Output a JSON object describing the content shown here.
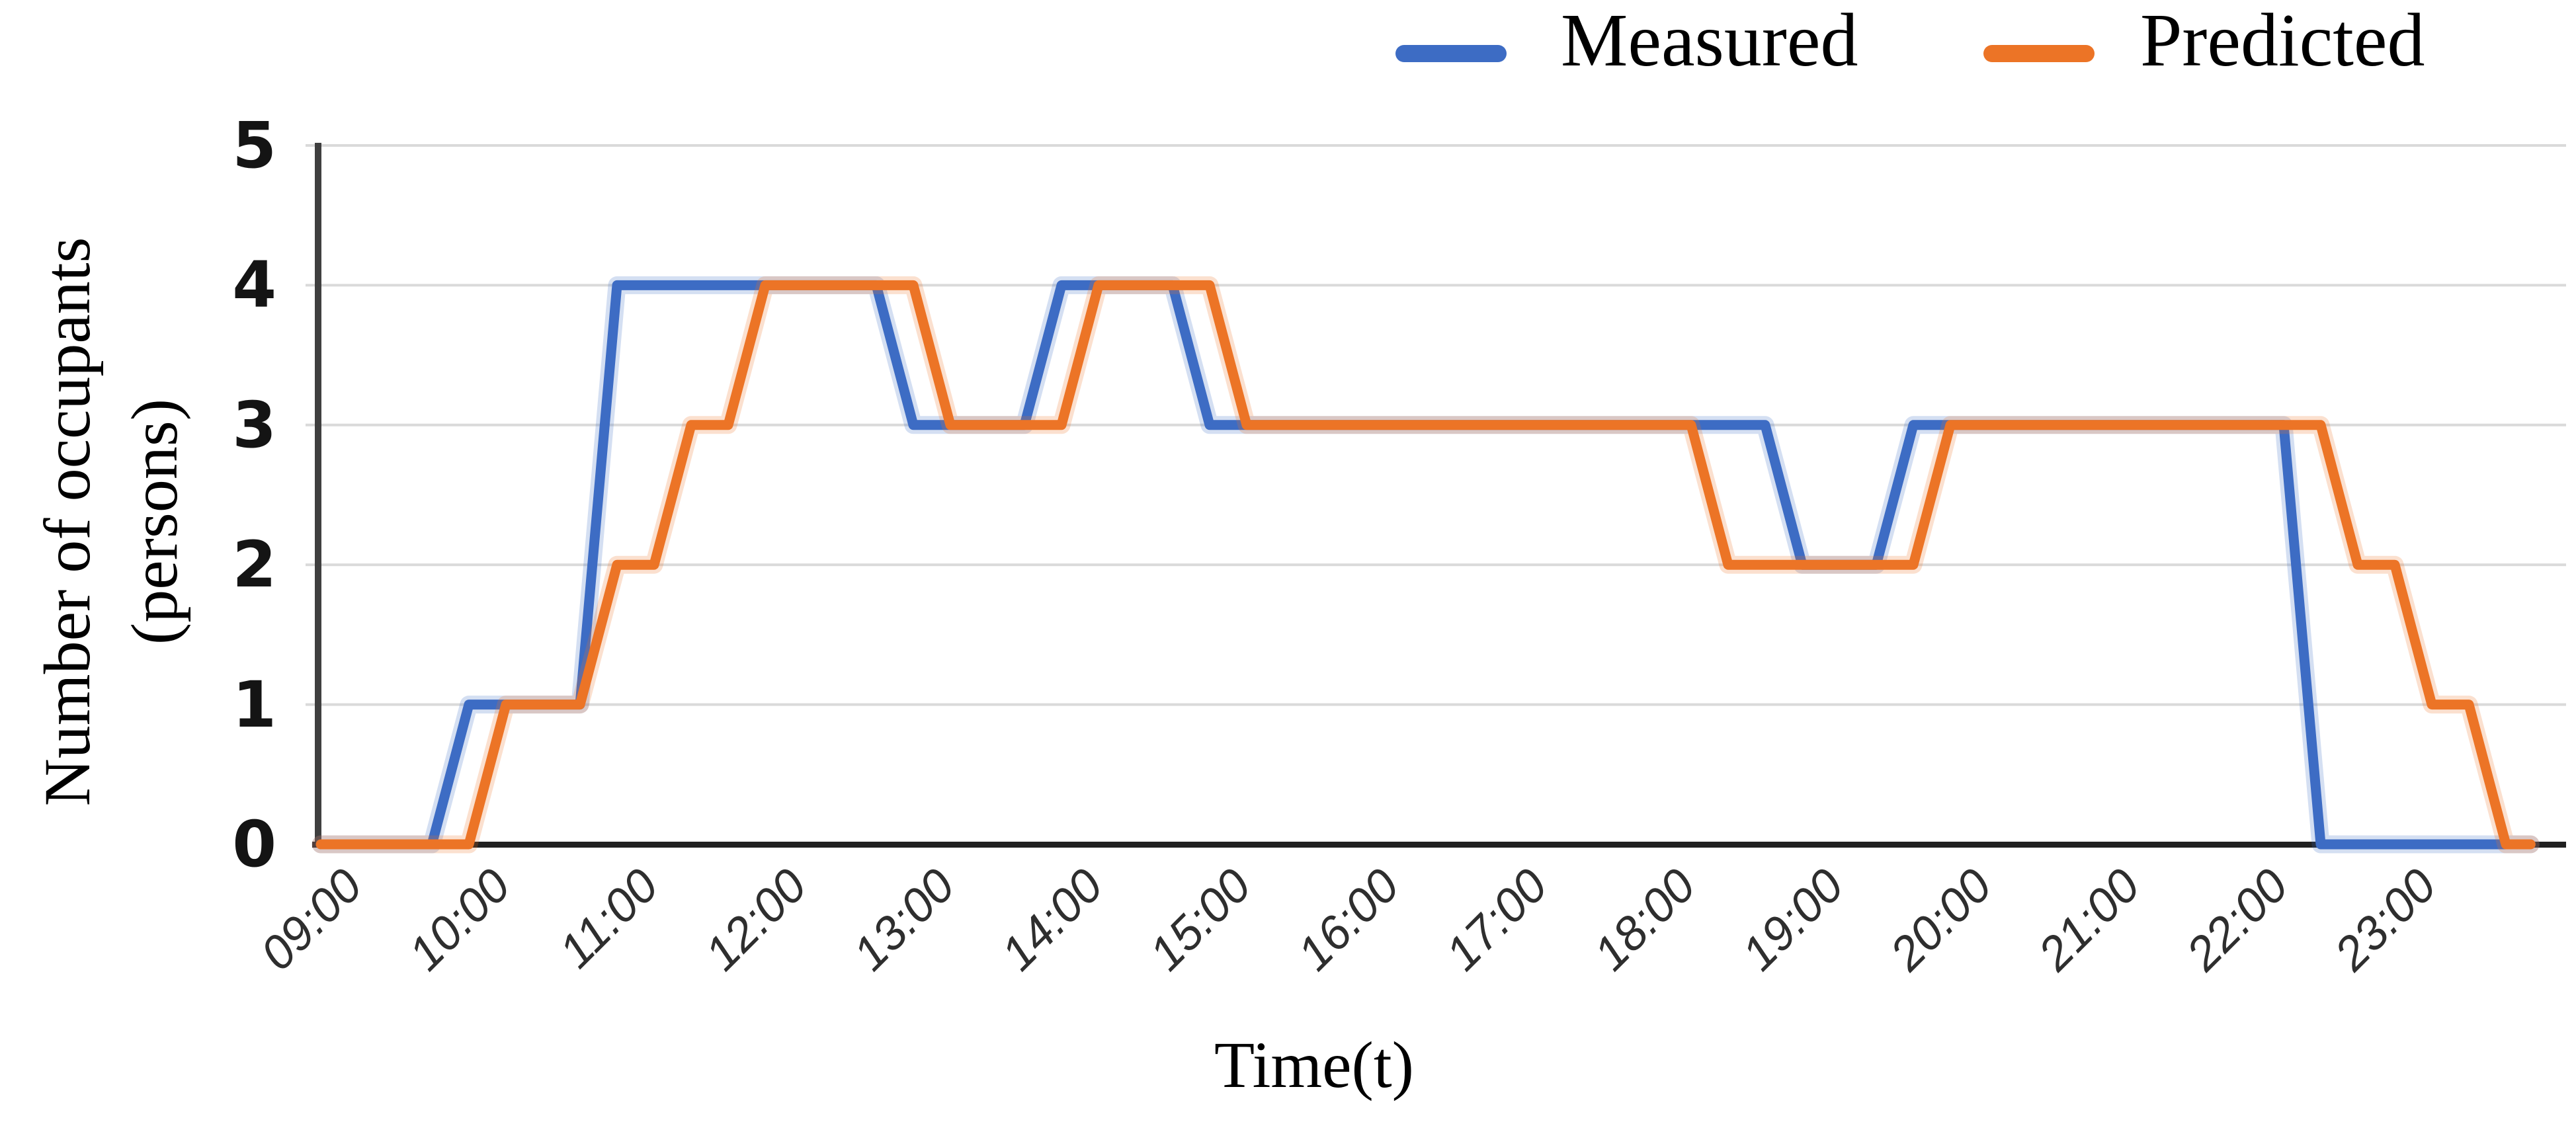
{
  "chart_data": {
    "type": "line",
    "xlabel": "Time(t)",
    "ylabel": "Number of occupants (persons)",
    "ylabel_lines": [
      "Number of occupants",
      "(persons)"
    ],
    "ylim": [
      0,
      5
    ],
    "yticks": [
      5,
      4,
      3,
      2,
      1,
      0
    ],
    "xticks": [
      "09:00",
      "10:00",
      "11:00",
      "12:00",
      "13:00",
      "14:00",
      "15:00",
      "16:00",
      "17:00",
      "18:00",
      "19:00",
      "20:00",
      "21:00",
      "22:00",
      "23:00"
    ],
    "grid": "horizontal",
    "legend_position": "top",
    "x": [
      "09:00",
      "09:15",
      "09:30",
      "09:45",
      "10:00",
      "10:15",
      "10:30",
      "10:45",
      "11:00",
      "11:15",
      "11:30",
      "11:45",
      "12:00",
      "12:15",
      "12:30",
      "12:45",
      "13:00",
      "13:15",
      "13:30",
      "13:45",
      "14:00",
      "14:15",
      "14:30",
      "14:45",
      "15:00",
      "15:15",
      "15:30",
      "15:45",
      "16:00",
      "16:15",
      "16:30",
      "16:45",
      "17:00",
      "17:15",
      "17:30",
      "17:45",
      "18:00",
      "18:15",
      "18:30",
      "18:45",
      "19:00",
      "19:15",
      "19:30",
      "19:45",
      "20:00",
      "20:15",
      "20:30",
      "20:45",
      "21:00",
      "21:15",
      "21:30",
      "21:45",
      "22:00",
      "22:15",
      "22:30",
      "22:45",
      "23:00",
      "23:15",
      "23:30",
      "23:45",
      "23:55"
    ],
    "series": [
      {
        "name": "Measured",
        "color": "#3D6CC4",
        "values": [
          0,
          0,
          0,
          0,
          1,
          1,
          1,
          1,
          4,
          4,
          4,
          4,
          4,
          4,
          4,
          4,
          3,
          3,
          3,
          3,
          4,
          4,
          4,
          4,
          3,
          3,
          3,
          3,
          3,
          3,
          3,
          3,
          3,
          3,
          3,
          3,
          3,
          3,
          3,
          3,
          2,
          2,
          2,
          3,
          3,
          3,
          3,
          3,
          3,
          3,
          3,
          3,
          3,
          3,
          0,
          0,
          0,
          0,
          0,
          0,
          0
        ]
      },
      {
        "name": "Predicted",
        "color": "#EC7426",
        "values": [
          0,
          0,
          0,
          0,
          0,
          1,
          1,
          1,
          2,
          2,
          3,
          3,
          4,
          4,
          4,
          4,
          4,
          3,
          3,
          3,
          3,
          4,
          4,
          4,
          4,
          3,
          3,
          3,
          3,
          3,
          3,
          3,
          3,
          3,
          3,
          3,
          3,
          3,
          2,
          2,
          2,
          2,
          2,
          2,
          3,
          3,
          3,
          3,
          3,
          3,
          3,
          3,
          3,
          3,
          3,
          2,
          2,
          1,
          1,
          0,
          0
        ]
      }
    ],
    "colors": {
      "gridline": "#DADADA",
      "y_axis_line": "#3F3F3F",
      "x_axis_line": "#212121"
    }
  }
}
